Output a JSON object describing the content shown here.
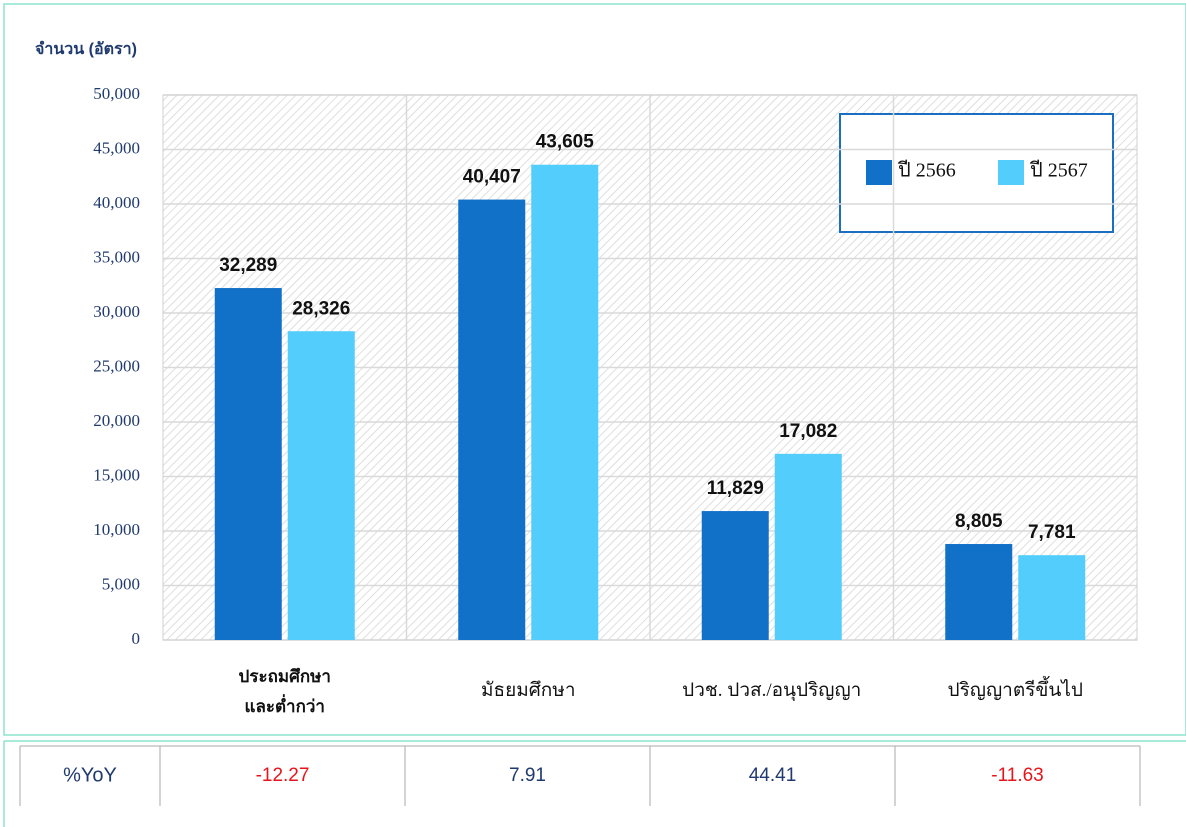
{
  "chart_data": {
    "type": "bar",
    "y_axis_title": "จำนวน (อัตรา)",
    "categories": [
      "ประถมศึกษา\nและต่ำกว่า",
      "มัธยมศึกษา",
      "ปวช. ปวส./อนุปริญญา",
      "ปริญญาตรีขึ้นไป"
    ],
    "series": [
      {
        "name": "ปี 2566",
        "color": "#1170c8",
        "values": [
          32289,
          40407,
          11829,
          8805
        ],
        "value_labels": [
          "32,289",
          "40,407",
          "11,829",
          "8,805"
        ]
      },
      {
        "name": "ปี 2567",
        "color": "#52cdfc",
        "values": [
          28326,
          43605,
          17082,
          7781
        ],
        "value_labels": [
          "28,326",
          "43,605",
          "17,082",
          "7,781"
        ]
      }
    ],
    "ylim": [
      0,
      50000
    ],
    "yticks": [
      0,
      {
        "value": 5000,
        "label": "5,000"
      },
      {
        "value": 10000,
        "label": "10,000"
      },
      {
        "value": 15000,
        "label": "15,000"
      },
      {
        "value": 20000,
        "label": "20,000"
      },
      {
        "value": 25000,
        "label": "25,000"
      },
      {
        "value": 30000,
        "label": "30,000"
      },
      {
        "value": 35000,
        "label": "35,000"
      },
      {
        "value": 40000,
        "label": "40,000"
      },
      {
        "value": 45000,
        "label": "45,000"
      },
      {
        "value": 50000,
        "label": "50,000"
      }
    ],
    "grid": true,
    "legend": "top-right"
  },
  "table": {
    "header": "%YoY",
    "values": [
      -12.27,
      7.91,
      44.41,
      -11.63
    ],
    "positive_color": "#1f3a6e",
    "negative_color": "#e8141b"
  }
}
